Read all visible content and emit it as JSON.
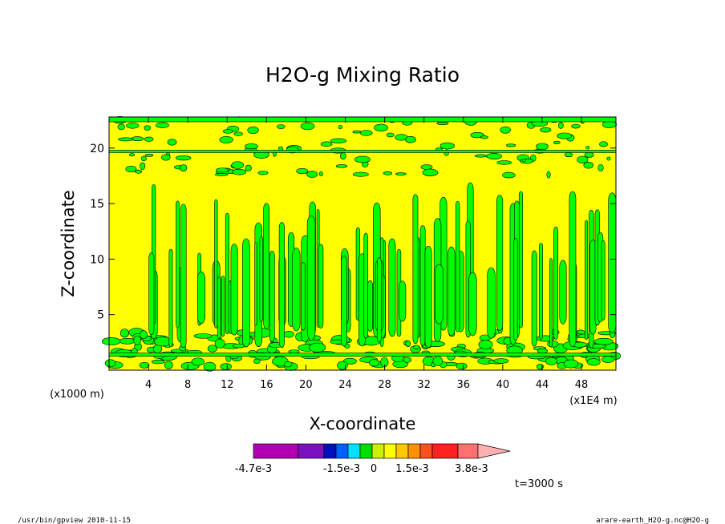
{
  "chart_data": {
    "type": "heatmap",
    "title": "H2O-g Mixing Ratio",
    "xlabel": "X-coordinate",
    "ylabel": "Z-coordinate",
    "x_unit": "(x1E4 m)",
    "y_unit": "(x1000 m)",
    "xlim": [
      0,
      51.5
    ],
    "ylim": [
      0,
      22.8
    ],
    "x_ticks": [
      "4",
      "8",
      "12",
      "16",
      "20",
      "24",
      "28",
      "32",
      "36",
      "40",
      "44",
      "48"
    ],
    "y_ticks": [
      "5",
      "10",
      "15",
      "20"
    ],
    "colorbar": {
      "colors": [
        "#b000b0",
        "#7a10c0",
        "#0010c0",
        "#0060ff",
        "#00e0ff",
        "#00e000",
        "#ccf000",
        "#ffff00",
        "#ffc800",
        "#ff9000",
        "#ff5020",
        "#ff2020",
        "#ff7070",
        "#ffb0b0"
      ],
      "labels": [
        "-4.7e-3",
        "-1.5e-3",
        "0",
        "1.5e-3",
        "3.8e-3"
      ]
    },
    "background_color": "#ffff00",
    "feature_color": "#00ff00",
    "time_label": "t=3000 s"
  },
  "footer": {
    "left": "/usr/bin/gpview   2010-11-15",
    "right": "arare-earth_H2O-g.nc@H2O-g"
  }
}
